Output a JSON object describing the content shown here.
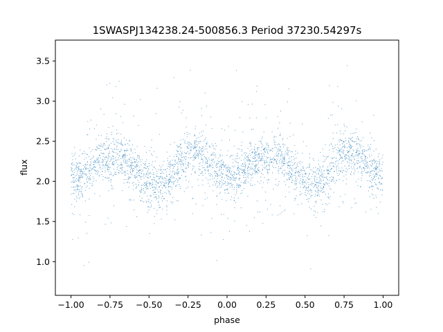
{
  "chart_data": {
    "type": "scatter",
    "title": "1SWASPJ134238.24-500856.3 Period 37230.54297s",
    "xlabel": "phase",
    "ylabel": "flux",
    "xlim": [
      -1.1,
      1.1
    ],
    "ylim": [
      0.58,
      3.76
    ],
    "xticks": [
      -1.0,
      -0.75,
      -0.5,
      -0.25,
      0.0,
      0.25,
      0.5,
      0.75,
      1.0
    ],
    "xtick_labels": [
      "−1.00",
      "−0.75",
      "−0.50",
      "−0.25",
      "0.00",
      "0.25",
      "0.50",
      "0.75",
      "1.00"
    ],
    "yticks": [
      1.0,
      1.5,
      2.0,
      2.5,
      3.0,
      3.5
    ],
    "ytick_labels": [
      "1.0",
      "1.5",
      "2.0",
      "2.5",
      "3.0",
      "3.5"
    ],
    "grid": false,
    "point_color": "#1f77b4",
    "series": [
      {
        "phase": [
          -1.0,
          -0.95,
          -0.9,
          -0.85,
          -0.8,
          -0.75,
          -0.7,
          -0.65,
          -0.6,
          -0.55,
          -0.5,
          -0.45,
          -0.4,
          -0.35,
          -0.3,
          -0.25,
          -0.2,
          -0.15,
          -0.1,
          -0.05,
          0.0,
          0.05,
          0.1,
          0.15,
          0.2,
          0.25,
          0.3,
          0.35,
          0.4,
          0.45,
          0.5,
          0.55,
          0.6,
          0.65,
          0.7,
          0.75,
          0.8,
          0.85,
          0.9,
          0.95,
          1.0
        ],
        "flux": [
          2.05,
          2.06,
          2.12,
          2.2,
          2.27,
          2.31,
          2.33,
          2.28,
          2.18,
          2.06,
          1.97,
          1.93,
          1.98,
          2.1,
          2.24,
          2.33,
          2.36,
          2.32,
          2.22,
          2.1,
          2.05,
          2.06,
          2.12,
          2.2,
          2.27,
          2.31,
          2.33,
          2.28,
          2.18,
          2.06,
          1.97,
          1.93,
          1.98,
          2.1,
          2.24,
          2.33,
          2.36,
          2.32,
          2.22,
          2.1,
          2.05
        ]
      }
    ]
  }
}
